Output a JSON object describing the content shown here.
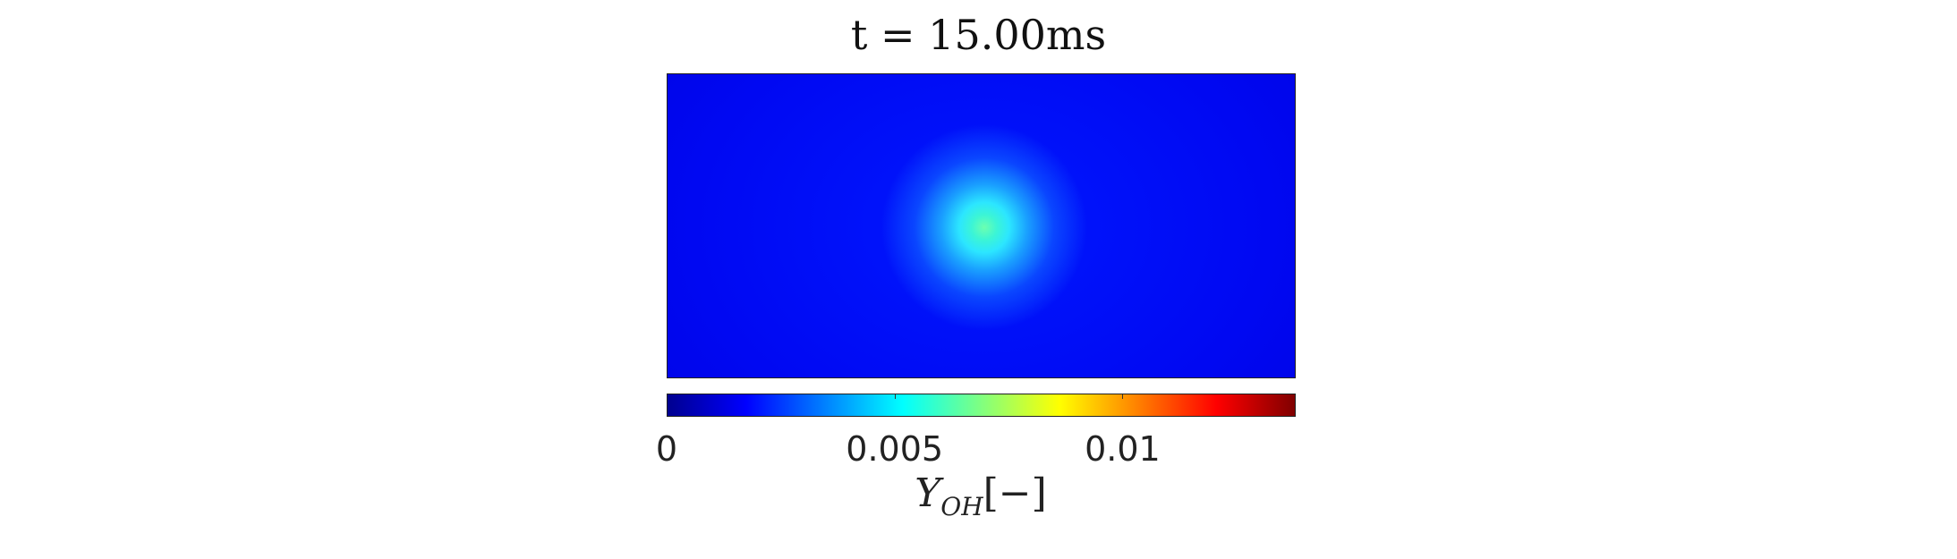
{
  "chart_data": {
    "type": "heatmap",
    "title": "t = 15.00ms",
    "colorbar": {
      "colormap": "jet",
      "range": [
        0,
        0.0138
      ],
      "ticks": [
        0,
        0.005,
        0.01
      ],
      "tick_labels": [
        "0",
        "0.005",
        "0.01"
      ],
      "label_main": "Y",
      "label_sub": "OH",
      "label_unit": "[−]",
      "orientation": "horizontal",
      "placement": "bottom"
    },
    "field": {
      "description_values": {
        "peak_value": 0.0055,
        "background_value": 0.0015
      }
    }
  }
}
